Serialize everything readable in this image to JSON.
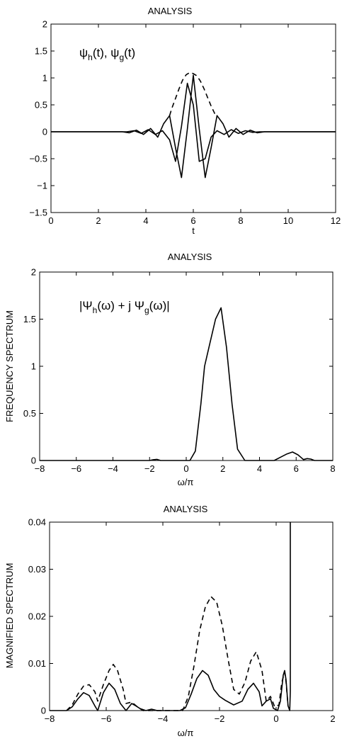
{
  "chart_data": [
    {
      "type": "line",
      "title": "ANALYSIS",
      "xlabel": "t",
      "ylabel": "",
      "annotation": "ψh(t), ψg(t)",
      "xlim": [
        0,
        12
      ],
      "ylim": [
        -1.5,
        2
      ],
      "xticks": [
        0,
        2,
        4,
        6,
        8,
        10,
        12
      ],
      "yticks": [
        -1.5,
        -1,
        -0.5,
        0,
        0.5,
        1,
        1.5,
        2
      ],
      "grid": false,
      "series": [
        {
          "style": "solid",
          "x": [
            0,
            3.0,
            3.3,
            3.6,
            3.9,
            4.2,
            4.5,
            4.75,
            5.0,
            5.25,
            5.5,
            5.75,
            6.0,
            6.25,
            6.5,
            6.75,
            7.0,
            7.25,
            7.5,
            7.8,
            8.1,
            8.4,
            8.7,
            9.0,
            12
          ],
          "y": [
            0,
            0,
            -0.02,
            0.03,
            -0.05,
            0.06,
            -0.1,
            0.15,
            0.3,
            -0.3,
            -0.85,
            0.05,
            1.05,
            0.05,
            -0.85,
            -0.3,
            0.3,
            0.15,
            -0.1,
            0.06,
            -0.05,
            0.03,
            -0.02,
            0,
            0
          ]
        },
        {
          "style": "solid",
          "x": [
            0,
            3.2,
            3.5,
            3.8,
            4.1,
            4.4,
            4.7,
            5.0,
            5.25,
            5.5,
            5.75,
            6.0,
            6.25,
            6.5,
            6.75,
            7.0,
            7.3,
            7.6,
            7.9,
            8.2,
            8.5,
            8.8,
            12
          ],
          "y": [
            0,
            0,
            0.02,
            -0.03,
            0.04,
            -0.05,
            0.02,
            -0.15,
            -0.55,
            0.1,
            0.9,
            0.5,
            -0.55,
            -0.5,
            -0.1,
            0.02,
            -0.05,
            0.04,
            -0.03,
            0.02,
            -0.01,
            0,
            0
          ]
        },
        {
          "style": "dashed",
          "x": [
            5.0,
            5.1,
            5.25,
            5.4,
            5.55,
            5.7,
            5.85,
            6.0,
            6.15,
            6.3,
            6.45,
            6.6,
            6.75,
            6.9,
            7.0
          ],
          "y": [
            0.3,
            0.44,
            0.62,
            0.8,
            0.96,
            1.06,
            1.1,
            1.08,
            1.04,
            0.94,
            0.8,
            0.64,
            0.48,
            0.34,
            0.3
          ]
        }
      ]
    },
    {
      "type": "line",
      "title": "ANALYSIS",
      "xlabel": "ω/π",
      "ylabel": "FREQUENCY SPECTRUM",
      "annotation": "|Ψh(ω) + j Ψg(ω)|",
      "xlim": [
        -8,
        8
      ],
      "ylim": [
        0,
        2
      ],
      "xticks": [
        -8,
        -6,
        -4,
        -2,
        0,
        2,
        4,
        6,
        8
      ],
      "yticks": [
        0,
        0.5,
        1,
        1.5,
        2
      ],
      "grid": false,
      "series": [
        {
          "style": "solid",
          "x": [
            -8,
            -2.0,
            -1.8,
            -1.6,
            -1.4,
            0.2,
            0.5,
            0.8,
            1.0,
            1.3,
            1.6,
            1.9,
            2.2,
            2.5,
            2.8,
            3.2,
            4.8,
            5.2,
            5.5,
            5.8,
            6.1,
            6.4,
            6.6,
            6.8,
            7.0,
            8
          ],
          "y": [
            0,
            0,
            0.008,
            0.012,
            0,
            0,
            0.1,
            0.6,
            1.0,
            1.25,
            1.5,
            1.62,
            1.2,
            0.6,
            0.12,
            0,
            0,
            0.04,
            0.07,
            0.09,
            0.06,
            0.01,
            0.02,
            0.015,
            0,
            0
          ]
        }
      ]
    },
    {
      "type": "line",
      "title": "ANALYSIS",
      "xlabel": "ω/π",
      "ylabel": "MAGNIFIED SPECTRUM",
      "xlim": [
        -8,
        2
      ],
      "ylim": [
        0,
        0.04
      ],
      "xticks": [
        -8,
        -6,
        -4,
        -2,
        0,
        2
      ],
      "yticks": [
        0,
        0.01,
        0.02,
        0.03,
        0.04
      ],
      "grid": false,
      "series": [
        {
          "style": "solid",
          "x": [
            -8,
            -7.4,
            -7.2,
            -7.0,
            -6.8,
            -6.6,
            -6.4,
            -6.3,
            -6.1,
            -5.9,
            -5.7,
            -5.5,
            -5.3,
            -5.1,
            -4.95,
            -4.8,
            -4.6,
            -4.4,
            -4.2,
            -3.4,
            -3.2,
            -3.0,
            -2.8,
            -2.6,
            -2.4,
            -2.2,
            -2.0,
            -1.8,
            -1.5,
            -1.2,
            -1.0,
            -0.8,
            -0.6,
            -0.5,
            -0.35,
            -0.2,
            -0.1,
            0.05,
            0.15,
            0.25,
            0.3,
            0.35,
            0.42,
            0.48,
            0.5,
            0.5
          ],
          "y": [
            0,
            0,
            0.0008,
            0.0025,
            0.0038,
            0.0032,
            0.001,
            0,
            0.0038,
            0.0058,
            0.0045,
            0.0015,
            0,
            0.0015,
            0.001,
            0.0004,
            0,
            0.0003,
            0,
            0,
            0.0006,
            0.0035,
            0.0068,
            0.0085,
            0.0075,
            0.0045,
            0.003,
            0.0022,
            0.0012,
            0.002,
            0.0045,
            0.0058,
            0.004,
            0.001,
            0.002,
            0.0025,
            0.0005,
            0,
            0.002,
            0.0075,
            0.0085,
            0.0065,
            0.001,
            0,
            0.004,
            0.04
          ]
        },
        {
          "style": "dashed",
          "x": [
            -7.4,
            -7.2,
            -7.0,
            -6.8,
            -6.6,
            -6.4,
            -6.3,
            -6.1,
            -5.9,
            -5.75,
            -5.6,
            -5.4,
            -5.3,
            -5.1,
            -4.9,
            -4.7,
            -3.3,
            -3.1,
            -2.9,
            -2.7,
            -2.5,
            -2.3,
            -2.1,
            -1.9,
            -1.7,
            -1.5,
            -1.3,
            -1.1,
            -0.9,
            -0.7,
            -0.5,
            -0.35,
            -0.2,
            -0.05,
            0.1,
            0.2,
            0.3,
            0.35,
            0.42
          ],
          "y": [
            0,
            0.0012,
            0.0035,
            0.0052,
            0.0055,
            0.004,
            0.002,
            0.0055,
            0.0085,
            0.0098,
            0.0085,
            0.0045,
            0.0015,
            0.0018,
            0.0008,
            0,
            0,
            0.003,
            0.0095,
            0.017,
            0.022,
            0.0242,
            0.023,
            0.018,
            0.011,
            0.0045,
            0.0035,
            0.006,
            0.0105,
            0.0125,
            0.0085,
            0.002,
            0.003,
            0.0008,
            0.0012,
            0.006,
            0.0082,
            0.006,
            0.001
          ]
        }
      ]
    }
  ]
}
